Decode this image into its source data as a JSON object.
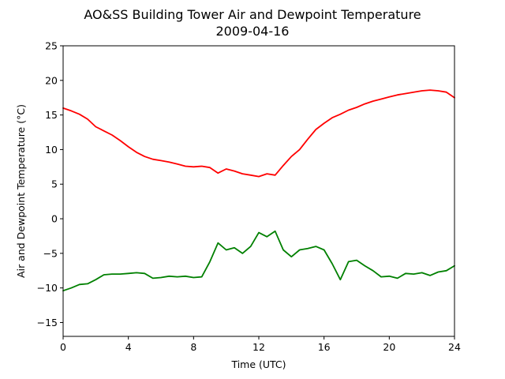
{
  "chart_data": {
    "type": "line",
    "title": "AO&SS Building Tower Air and Dewpoint Temperature",
    "subtitle": "2009-04-16",
    "xlabel": "Time (UTC)",
    "ylabel": "Air and Dewpoint Temperature (°C)",
    "xlim": [
      0,
      24
    ],
    "ylim": [
      -17,
      25
    ],
    "xticks": [
      0,
      4,
      8,
      12,
      16,
      20,
      24
    ],
    "yticks": [
      -15,
      -10,
      -5,
      0,
      5,
      10,
      15,
      20,
      25
    ],
    "xtick_labels": [
      "0",
      "4",
      "8",
      "12",
      "16",
      "20",
      "24"
    ],
    "ytick_labels": [
      "−15",
      "−10",
      "−5",
      "0",
      "5",
      "10",
      "15",
      "20",
      "25"
    ],
    "grid": false,
    "legend": "none",
    "series": [
      {
        "color": "#ff0000",
        "x": [
          0,
          0.5,
          1,
          1.5,
          2,
          2.5,
          3,
          3.5,
          4,
          4.5,
          5,
          5.5,
          6,
          6.5,
          7,
          7.5,
          8,
          8.5,
          9,
          9.5,
          10,
          10.5,
          11,
          11.5,
          12,
          12.5,
          13,
          13.5,
          14,
          14.5,
          15,
          15.5,
          16,
          16.5,
          17,
          17.5,
          18,
          18.5,
          19,
          19.5,
          20,
          20.5,
          21,
          21.5,
          22,
          22.5,
          23,
          23.5,
          24
        ],
        "y": [
          16.0,
          15.6,
          15.1,
          14.4,
          13.3,
          12.7,
          12.1,
          11.3,
          10.4,
          9.6,
          9.0,
          8.6,
          8.4,
          8.2,
          7.9,
          7.6,
          7.5,
          7.6,
          7.4,
          6.6,
          7.2,
          6.9,
          6.5,
          6.3,
          6.1,
          6.5,
          6.3,
          7.7,
          9.0,
          10.0,
          11.5,
          12.9,
          13.8,
          14.6,
          15.1,
          15.7,
          16.1,
          16.6,
          17.0,
          17.3,
          17.6,
          17.9,
          18.1,
          18.3,
          18.5,
          18.6,
          18.5,
          18.3,
          17.5
        ]
      },
      {
        "color": "#008000",
        "x": [
          0,
          0.5,
          1,
          1.5,
          2,
          2.5,
          3,
          3.5,
          4,
          4.5,
          5,
          5.5,
          6,
          6.5,
          7,
          7.5,
          8,
          8.5,
          9,
          9.5,
          10,
          10.5,
          11,
          11.5,
          12,
          12.5,
          13,
          13.5,
          14,
          14.5,
          15,
          15.5,
          16,
          16.5,
          17,
          17.5,
          18,
          18.5,
          19,
          19.5,
          20,
          20.5,
          21,
          21.5,
          22,
          22.5,
          23,
          23.5,
          24
        ],
        "y": [
          -10.4,
          -10.0,
          -9.5,
          -9.4,
          -8.8,
          -8.1,
          -8.0,
          -8.0,
          -7.9,
          -7.8,
          -7.9,
          -8.6,
          -8.5,
          -8.3,
          -8.4,
          -8.3,
          -8.5,
          -8.4,
          -6.2,
          -3.5,
          -4.5,
          -4.2,
          -5.0,
          -4.0,
          -2.0,
          -2.6,
          -1.8,
          -4.5,
          -5.5,
          -4.5,
          -4.3,
          -4.0,
          -4.5,
          -6.5,
          -8.8,
          -6.2,
          -6.0,
          -6.8,
          -7.5,
          -8.4,
          -8.3,
          -8.6,
          -7.9,
          -8.0,
          -7.8,
          -8.2,
          -7.7,
          -7.5,
          -6.8
        ]
      }
    ]
  }
}
